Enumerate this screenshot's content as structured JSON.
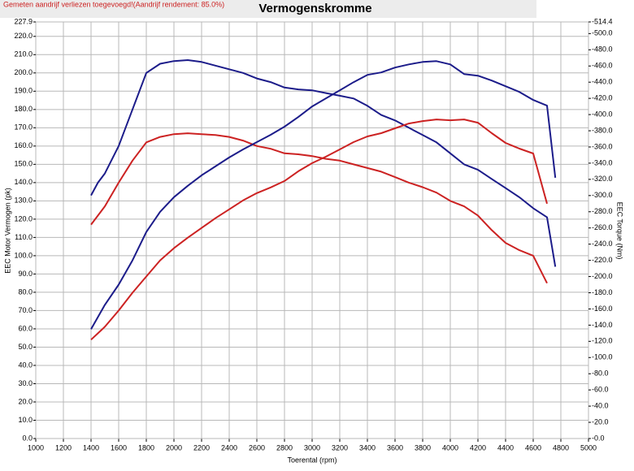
{
  "chart_data": {
    "type": "line",
    "title": "Vermogenskromme",
    "subtitle": "Gemeten aandrijf verliezen toegevoegd!(Aandrijf rendement: 85.0%)",
    "x_label": "Toerental (rpm)",
    "y_label": "EEC Motor Vermogen (pk)",
    "y2_label": "EEC Torque (Nm)",
    "grid": true,
    "x": [
      1400,
      1450,
      1500,
      1600,
      1700,
      1800,
      1900,
      2000,
      2100,
      2200,
      2300,
      2400,
      2500,
      2600,
      2700,
      2800,
      2900,
      3000,
      3100,
      3200,
      3300,
      3400,
      3500,
      3600,
      3700,
      3800,
      3900,
      4000,
      4100,
      4200,
      4300,
      4400,
      4500,
      4600,
      4700,
      4760
    ],
    "xlim": [
      1000,
      5000
    ],
    "xticks": [
      1000,
      1200,
      1400,
      1600,
      1800,
      2000,
      2200,
      2400,
      2600,
      2800,
      3000,
      3200,
      3400,
      3600,
      3800,
      4000,
      4200,
      4400,
      4600,
      4800,
      5000
    ],
    "ylim": [
      0,
      227.9
    ],
    "yticks": [
      {
        "value": 0,
        "label": "0.0"
      },
      {
        "value": 10,
        "label": "10.0"
      },
      {
        "value": 20,
        "label": "20.0"
      },
      {
        "value": 30,
        "label": "30.0"
      },
      {
        "value": 40,
        "label": "40.0"
      },
      {
        "value": 50,
        "label": "50.0"
      },
      {
        "value": 60,
        "label": "60.0"
      },
      {
        "value": 70,
        "label": "70.0"
      },
      {
        "value": 80,
        "label": "80.0"
      },
      {
        "value": 90,
        "label": "90.0"
      },
      {
        "value": 100,
        "label": "100.0"
      },
      {
        "value": 110,
        "label": "110.0"
      },
      {
        "value": 120,
        "label": "120.0"
      },
      {
        "value": 130,
        "label": "130.0"
      },
      {
        "value": 140,
        "label": "140.0"
      },
      {
        "value": 150,
        "label": "150.0"
      },
      {
        "value": 160,
        "label": "160.0"
      },
      {
        "value": 170,
        "label": "170.0"
      },
      {
        "value": 180,
        "label": "180.0"
      },
      {
        "value": 190,
        "label": "190.0"
      },
      {
        "value": 200,
        "label": "200.0"
      },
      {
        "value": 210,
        "label": "210.0"
      },
      {
        "value": 220,
        "label": "220.0"
      },
      {
        "value": 227.9,
        "label": "227.9"
      }
    ],
    "y2lim": [
      0,
      514.4
    ],
    "y2ticks": [
      {
        "value": 0,
        "label": "-0.0"
      },
      {
        "value": 20,
        "label": "-20.0"
      },
      {
        "value": 40,
        "label": "-40.0"
      },
      {
        "value": 60,
        "label": "-60.0"
      },
      {
        "value": 80,
        "label": "-80.0"
      },
      {
        "value": 100,
        "label": "-100.0"
      },
      {
        "value": 120,
        "label": "-120.0"
      },
      {
        "value": 140,
        "label": "-140.0"
      },
      {
        "value": 160,
        "label": "-160.0"
      },
      {
        "value": 180,
        "label": "-180.0"
      },
      {
        "value": 200,
        "label": "-200.0"
      },
      {
        "value": 220,
        "label": "-220.0"
      },
      {
        "value": 240,
        "label": "-240.0"
      },
      {
        "value": 260,
        "label": "-260.0"
      },
      {
        "value": 280,
        "label": "-280.0"
      },
      {
        "value": 300,
        "label": "-300.0"
      },
      {
        "value": 320,
        "label": "-320.0"
      },
      {
        "value": 340,
        "label": "-340.0"
      },
      {
        "value": 360,
        "label": "-360.0"
      },
      {
        "value": 380,
        "label": "-380.0"
      },
      {
        "value": 400,
        "label": "-400.0"
      },
      {
        "value": 420,
        "label": "-420.0"
      },
      {
        "value": 440,
        "label": "-440.0"
      },
      {
        "value": 460,
        "label": "-460.0"
      },
      {
        "value": 480,
        "label": "-480.0"
      },
      {
        "value": 500,
        "label": "-500.0"
      },
      {
        "value": 514.4,
        "label": "-514.4"
      }
    ],
    "series": [
      {
        "color": "#1c1c8a",
        "values": [
          133,
          140,
          145,
          160,
          180,
          200,
          205,
          206.5,
          207,
          206,
          204,
          202,
          200,
          197,
          195,
          192,
          191,
          190.5,
          189,
          187.5,
          186,
          182,
          177,
          174,
          170,
          166,
          162,
          156,
          150,
          147,
          142,
          137,
          132,
          126,
          121,
          94
        ]
      },
      {
        "color": "#cc2222",
        "values": [
          117,
          122,
          127,
          140,
          152,
          162,
          165,
          166.5,
          167,
          166.5,
          166,
          165,
          163,
          160,
          158.5,
          156,
          155.5,
          154.5,
          153,
          152,
          150,
          148,
          146,
          143,
          140,
          137.5,
          134.5,
          130,
          127,
          122,
          114,
          107,
          103,
          100,
          85,
          null
        ]
      },
      {
        "color": "#1c1c8a",
        "axis": "y2",
        "values": [
          135,
          150,
          165,
          190,
          220,
          255,
          280,
          298,
          312,
          325,
          336,
          347,
          357,
          366,
          375,
          385,
          397,
          410,
          420,
          430,
          440,
          449,
          452,
          458,
          462,
          465,
          466,
          462,
          450,
          448,
          442,
          435,
          428,
          418,
          411,
          322
        ]
      },
      {
        "color": "#cc2222",
        "axis": "y2",
        "values": [
          122,
          130,
          138,
          158,
          180,
          200,
          220,
          235,
          248,
          260,
          272,
          283,
          294,
          303,
          310,
          318,
          330,
          340,
          348,
          357,
          366,
          373,
          377,
          383,
          389,
          392,
          394,
          393,
          394,
          390,
          377,
          365,
          358,
          352,
          290,
          null
        ]
      }
    ]
  }
}
